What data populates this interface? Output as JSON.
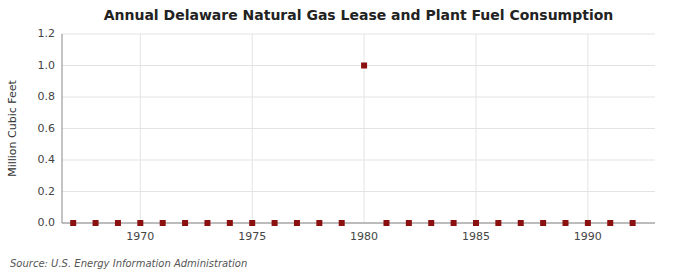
{
  "chart_data": {
    "type": "scatter",
    "title": "Annual Delaware Natural Gas Lease and Plant Fuel Consumption",
    "y_label": "Million Cubic Feet",
    "source": "Source: U.S. Energy Information Administration",
    "x": [
      1967,
      1968,
      1969,
      1970,
      1971,
      1972,
      1973,
      1974,
      1975,
      1976,
      1977,
      1978,
      1979,
      1980,
      1981,
      1982,
      1983,
      1984,
      1985,
      1986,
      1987,
      1988,
      1989,
      1990,
      1991,
      1992
    ],
    "values": [
      0,
      0,
      0,
      0,
      0,
      0,
      0,
      0,
      0,
      0,
      0,
      0,
      0,
      1.0,
      0,
      0,
      0,
      0,
      0,
      0,
      0,
      0,
      0,
      0,
      0,
      0
    ],
    "color": "#8b1010",
    "marker": "square",
    "xlim": [
      1966.5,
      1993
    ],
    "ylim": [
      0,
      1.2
    ],
    "xticks": [
      1970,
      1975,
      1980,
      1985,
      1990
    ],
    "yticks": [
      {
        "value": 0,
        "label": "0.0"
      },
      0.2,
      0.4,
      0.6,
      0.8,
      {
        "value": 1,
        "label": "1.0"
      },
      1.2
    ],
    "grid": true
  }
}
